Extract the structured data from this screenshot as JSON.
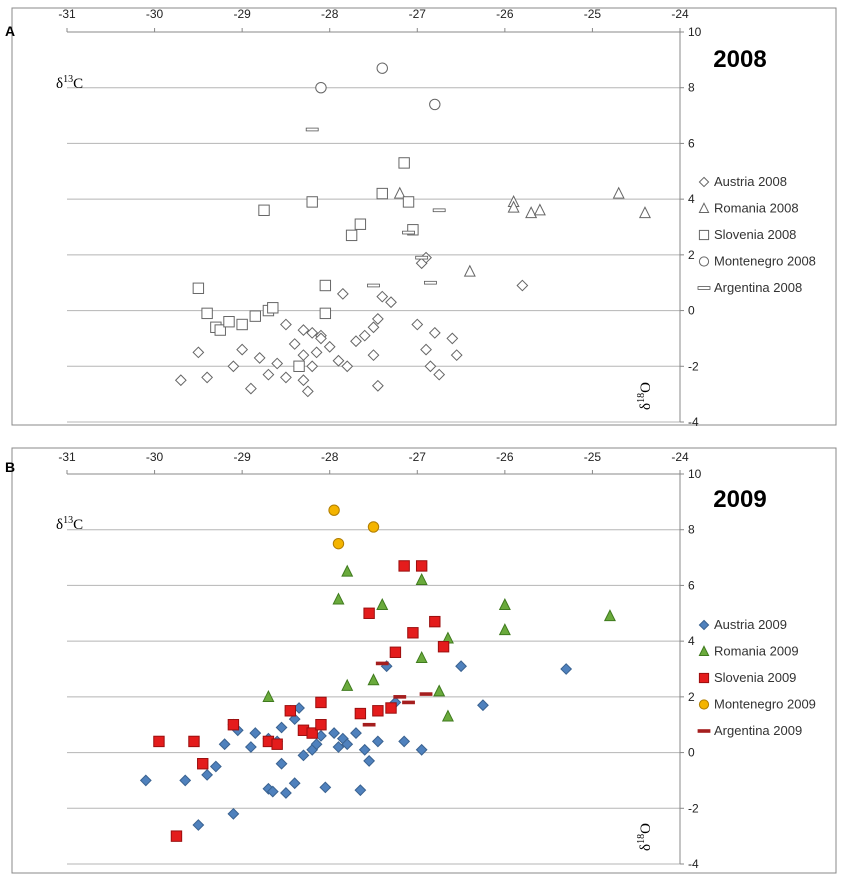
{
  "chart_data": [
    {
      "type": "scatter",
      "panel_label": "A",
      "title": "2008",
      "ylabel": "δ13C",
      "xlabel": "δ18O",
      "xlim": [
        -31,
        -24
      ],
      "ylim": [
        -4,
        10
      ],
      "xticks": [
        -31,
        -30,
        -29,
        -28,
        -27,
        -26,
        -25,
        -24
      ],
      "yticks": [
        -4,
        -2,
        0,
        2,
        4,
        6,
        8,
        10
      ],
      "grid": true,
      "legend_position": "right",
      "series": [
        {
          "name": "Austria 2008",
          "marker": "diamond",
          "fill": "#ffffff",
          "stroke": "#666666",
          "points": [
            [
              -29.7,
              -2.5
            ],
            [
              -29.5,
              -1.5
            ],
            [
              -29.4,
              -2.4
            ],
            [
              -29.1,
              -2.0
            ],
            [
              -29.0,
              -1.4
            ],
            [
              -28.9,
              -2.8
            ],
            [
              -28.8,
              -1.7
            ],
            [
              -28.7,
              -2.3
            ],
            [
              -28.6,
              -1.9
            ],
            [
              -28.5,
              -2.4
            ],
            [
              -28.4,
              -1.2
            ],
            [
              -28.3,
              -1.6
            ],
            [
              -28.3,
              -2.5
            ],
            [
              -28.25,
              -2.9
            ],
            [
              -28.2,
              -2.0
            ],
            [
              -28.15,
              -1.5
            ],
            [
              -28.1,
              -0.9
            ],
            [
              -28.0,
              -1.3
            ],
            [
              -27.9,
              -1.8
            ],
            [
              -27.8,
              -2.0
            ],
            [
              -27.85,
              0.6
            ],
            [
              -27.7,
              -1.1
            ],
            [
              -27.6,
              -0.9
            ],
            [
              -27.5,
              -1.6
            ],
            [
              -27.45,
              -2.7
            ],
            [
              -27.4,
              0.5
            ],
            [
              -27.3,
              0.3
            ],
            [
              -27.45,
              -0.3
            ],
            [
              -27.5,
              -0.6
            ],
            [
              -27.0,
              -0.5
            ],
            [
              -26.95,
              1.7
            ],
            [
              -26.9,
              1.9
            ],
            [
              -26.9,
              -1.4
            ],
            [
              -26.85,
              -2.0
            ],
            [
              -26.8,
              -0.8
            ],
            [
              -26.75,
              -2.3
            ],
            [
              -26.6,
              -1.0
            ],
            [
              -26.55,
              -1.6
            ],
            [
              -25.8,
              0.9
            ],
            [
              -28.5,
              -0.5
            ],
            [
              -28.3,
              -0.7
            ],
            [
              -28.2,
              -0.8
            ],
            [
              -28.1,
              -1.0
            ]
          ]
        },
        {
          "name": "Romania 2008",
          "marker": "triangle",
          "fill": "#ffffff",
          "stroke": "#666666",
          "points": [
            [
              -27.2,
              4.2
            ],
            [
              -26.4,
              1.4
            ],
            [
              -25.9,
              3.9
            ],
            [
              -25.9,
              3.7
            ],
            [
              -25.7,
              3.5
            ],
            [
              -25.6,
              3.6
            ],
            [
              -24.7,
              4.2
            ],
            [
              -24.4,
              3.5
            ]
          ]
        },
        {
          "name": "Slovenia 2008",
          "marker": "square",
          "fill": "#ffffff",
          "stroke": "#666666",
          "points": [
            [
              -29.5,
              0.8
            ],
            [
              -29.4,
              -0.1
            ],
            [
              -29.3,
              -0.6
            ],
            [
              -29.25,
              -0.7
            ],
            [
              -29.15,
              -0.4
            ],
            [
              -29.0,
              -0.5
            ],
            [
              -28.85,
              -0.2
            ],
            [
              -28.7,
              0.0
            ],
            [
              -28.65,
              0.1
            ],
            [
              -28.75,
              3.6
            ],
            [
              -28.35,
              -2.0
            ],
            [
              -28.2,
              3.9
            ],
            [
              -28.05,
              -0.1
            ],
            [
              -28.05,
              0.9
            ],
            [
              -27.75,
              2.7
            ],
            [
              -27.65,
              3.1
            ],
            [
              -27.4,
              4.2
            ],
            [
              -27.15,
              5.3
            ],
            [
              -27.1,
              3.9
            ],
            [
              -27.05,
              2.9
            ]
          ]
        },
        {
          "name": "Montenegro 2008",
          "marker": "circle",
          "fill": "#ffffff",
          "stroke": "#666666",
          "points": [
            [
              -28.1,
              8.0
            ],
            [
              -27.4,
              8.7
            ],
            [
              -26.8,
              7.4
            ]
          ]
        },
        {
          "name": "Argentina 2008",
          "marker": "dash",
          "fill": "#ffffff",
          "stroke": "#555555",
          "points": [
            [
              -28.2,
              6.5
            ],
            [
              -27.5,
              0.9
            ],
            [
              -27.1,
              2.8
            ],
            [
              -26.95,
              1.9
            ],
            [
              -26.85,
              1.0
            ],
            [
              -26.75,
              3.6
            ]
          ]
        }
      ]
    },
    {
      "type": "scatter",
      "panel_label": "B",
      "title": "2009",
      "ylabel": "δ13C",
      "xlabel": "δ18O",
      "xlim": [
        -31,
        -24
      ],
      "ylim": [
        -4,
        10
      ],
      "xticks": [
        -31,
        -30,
        -29,
        -28,
        -27,
        -26,
        -25,
        -24
      ],
      "yticks": [
        -4,
        -2,
        0,
        2,
        4,
        6,
        8,
        10
      ],
      "grid": true,
      "legend_position": "right",
      "series": [
        {
          "name": "Austria 2009",
          "marker": "diamond",
          "fill": "#4f81bd",
          "stroke": "#3a6290",
          "points": [
            [
              -30.1,
              -1.0
            ],
            [
              -29.65,
              -1.0
            ],
            [
              -29.5,
              -2.6
            ],
            [
              -29.4,
              -0.8
            ],
            [
              -29.3,
              -0.5
            ],
            [
              -29.2,
              0.3
            ],
            [
              -29.1,
              -2.2
            ],
            [
              -29.1,
              1.0
            ],
            [
              -28.9,
              0.2
            ],
            [
              -28.85,
              0.7
            ],
            [
              -28.7,
              -1.3
            ],
            [
              -28.65,
              -1.4
            ],
            [
              -28.6,
              0.4
            ],
            [
              -28.55,
              0.9
            ],
            [
              -28.5,
              -1.45
            ],
            [
              -28.45,
              1.5
            ],
            [
              -28.4,
              1.2
            ],
            [
              -28.35,
              1.6
            ],
            [
              -28.4,
              -1.1
            ],
            [
              -28.3,
              -0.1
            ],
            [
              -28.2,
              0.1
            ],
            [
              -28.15,
              0.3
            ],
            [
              -28.1,
              0.6
            ],
            [
              -28.05,
              -1.25
            ],
            [
              -27.95,
              0.7
            ],
            [
              -27.9,
              0.2
            ],
            [
              -27.85,
              0.5
            ],
            [
              -27.8,
              0.3
            ],
            [
              -27.7,
              0.7
            ],
            [
              -27.65,
              -1.35
            ],
            [
              -27.6,
              0.1
            ],
            [
              -27.55,
              -0.3
            ],
            [
              -27.45,
              0.4
            ],
            [
              -27.35,
              3.1
            ],
            [
              -27.25,
              1.8
            ],
            [
              -27.15,
              0.4
            ],
            [
              -26.95,
              0.1
            ],
            [
              -26.5,
              3.1
            ],
            [
              -26.25,
              1.7
            ],
            [
              -25.3,
              3.0
            ],
            [
              -28.55,
              -0.4
            ],
            [
              -28.7,
              0.5
            ],
            [
              -29.05,
              0.8
            ]
          ]
        },
        {
          "name": "Romania 2009",
          "marker": "triangle",
          "fill": "#6aaa3c",
          "stroke": "#3f7a1e",
          "points": [
            [
              -28.7,
              2.0
            ],
            [
              -27.9,
              5.5
            ],
            [
              -27.8,
              6.5
            ],
            [
              -27.8,
              2.4
            ],
            [
              -27.5,
              2.6
            ],
            [
              -27.4,
              5.3
            ],
            [
              -26.95,
              6.2
            ],
            [
              -26.95,
              3.4
            ],
            [
              -26.75,
              2.2
            ],
            [
              -26.65,
              1.3
            ],
            [
              -26.65,
              4.1
            ],
            [
              -26.0,
              5.3
            ],
            [
              -26.0,
              4.4
            ],
            [
              -24.8,
              4.9
            ]
          ]
        },
        {
          "name": "Slovenia 2009",
          "marker": "square",
          "fill": "#e41c1c",
          "stroke": "#9b0e0e",
          "points": [
            [
              -29.95,
              0.4
            ],
            [
              -29.55,
              0.4
            ],
            [
              -29.45,
              -0.4
            ],
            [
              -29.1,
              1.0
            ],
            [
              -28.7,
              0.4
            ],
            [
              -28.6,
              0.3
            ],
            [
              -28.45,
              1.5
            ],
            [
              -28.3,
              0.8
            ],
            [
              -28.2,
              0.7
            ],
            [
              -28.1,
              1.0
            ],
            [
              -28.1,
              1.8
            ],
            [
              -27.65,
              1.4
            ],
            [
              -27.55,
              5.0
            ],
            [
              -27.45,
              1.5
            ],
            [
              -27.3,
              1.6
            ],
            [
              -27.25,
              3.6
            ],
            [
              -27.15,
              6.7
            ],
            [
              -27.05,
              4.3
            ],
            [
              -26.95,
              6.7
            ],
            [
              -26.8,
              4.7
            ],
            [
              -26.7,
              3.8
            ],
            [
              -29.75,
              -3.0
            ]
          ]
        },
        {
          "name": "Montenegro 2009",
          "marker": "circle",
          "fill": "#f4b400",
          "stroke": "#b07d00",
          "points": [
            [
              -27.95,
              8.7
            ],
            [
              -27.9,
              7.5
            ],
            [
              -27.5,
              8.1
            ]
          ]
        },
        {
          "name": "Argentina 2009",
          "marker": "dash",
          "fill": "#a51e1e",
          "stroke": "#a51e1e",
          "points": [
            [
              -27.55,
              1.0
            ],
            [
              -27.4,
              3.2
            ],
            [
              -27.2,
              2.0
            ],
            [
              -27.1,
              1.8
            ],
            [
              -26.9,
              2.1
            ]
          ]
        }
      ]
    }
  ]
}
